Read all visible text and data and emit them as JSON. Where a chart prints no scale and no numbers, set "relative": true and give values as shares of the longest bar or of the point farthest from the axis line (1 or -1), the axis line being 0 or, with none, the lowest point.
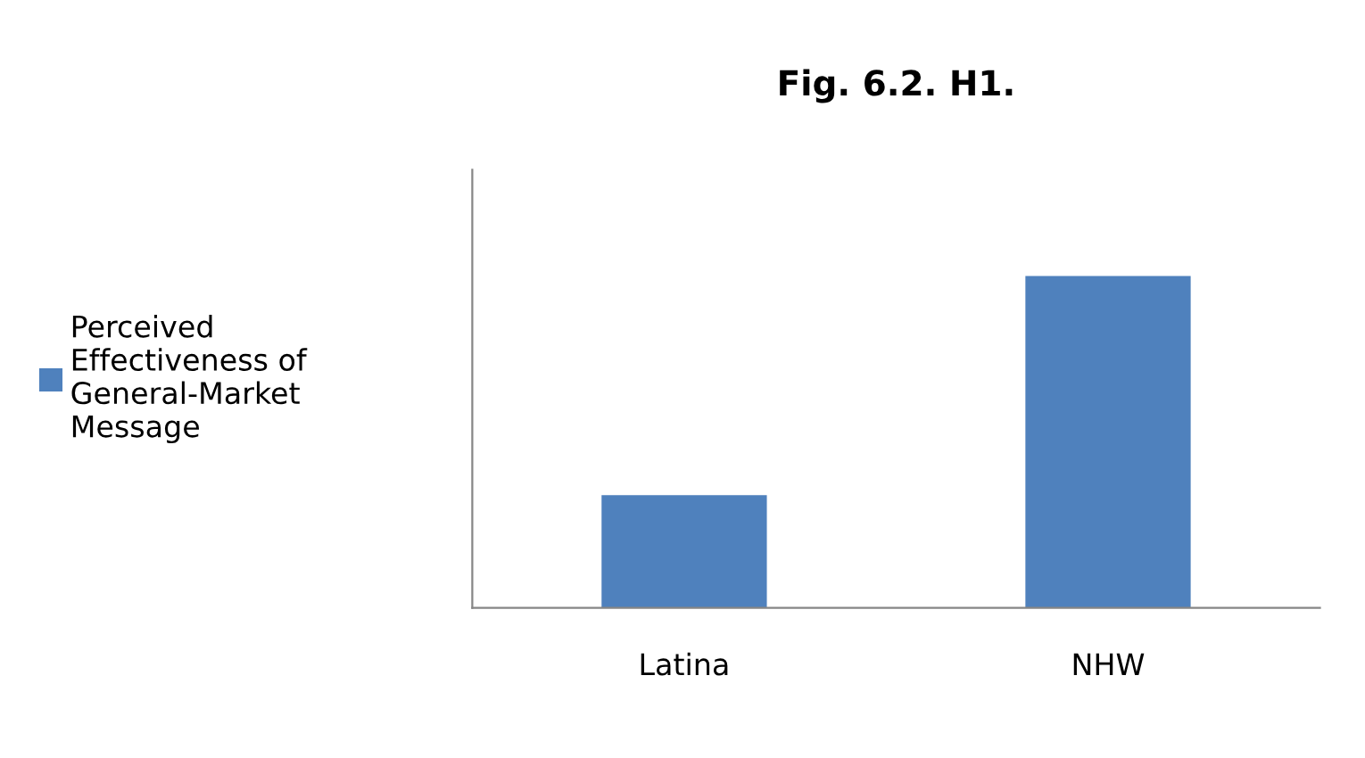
{
  "chart_data": {
    "type": "bar",
    "title": "Fig. 6.2. H1.",
    "categories": [
      "Latina",
      "NHW"
    ],
    "relative": true,
    "series": [
      {
        "name": "Perceived Effectiveness of General-Market Message",
        "color": "#4f81bd",
        "values": [
          0.34,
          1
        ]
      }
    ],
    "legend": "left"
  }
}
